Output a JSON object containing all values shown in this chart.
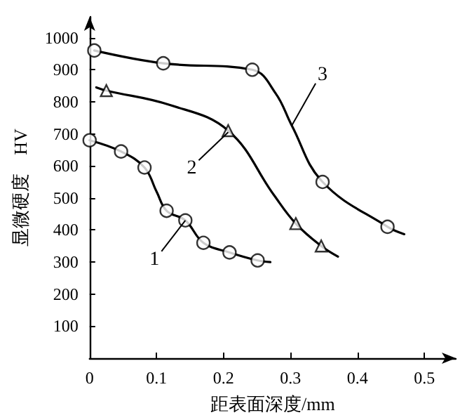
{
  "chart_data": {
    "type": "line",
    "xlabel": "距表面深度/mm",
    "ylabel": "显微硬度　HV",
    "xlim": [
      0,
      0.547
    ],
    "ylim": [
      0,
      1065
    ],
    "xticks": [
      0,
      0.1,
      0.2,
      0.3,
      0.4,
      0.5
    ],
    "yticks": [
      100,
      200,
      300,
      400,
      500,
      600,
      700,
      800,
      900,
      1000
    ],
    "grid": false,
    "series": [
      {
        "marker": "none",
        "color": "#000000",
        "x": [
          0,
          0.047,
          0.082,
          0.1,
          0.115,
          0.143,
          0.17,
          0.209,
          0.251,
          0.27
        ],
        "values": [
          680,
          645,
          595,
          520,
          460,
          430,
          360,
          330,
          305,
          300
        ]
      },
      {
        "type": "scatter",
        "marker": "circle",
        "color": "#000000",
        "x": [
          0,
          0.047,
          0.082,
          0.115,
          0.143,
          0.17,
          0.209,
          0.251
        ],
        "values": [
          680,
          645,
          595,
          460,
          430,
          360,
          330,
          305
        ]
      },
      {
        "marker": "none",
        "color": "#000000",
        "x": [
          0.01,
          0.025,
          0.12,
          0.207,
          0.275,
          0.308,
          0.346,
          0.371
        ],
        "values": [
          845,
          835,
          790,
          710,
          510,
          420,
          350,
          317
        ]
      },
      {
        "type": "scatter",
        "marker": "triangle",
        "color": "#000000",
        "x": [
          0.025,
          0.207,
          0.308,
          0.346
        ],
        "values": [
          835,
          710,
          420,
          350
        ]
      },
      {
        "marker": "none",
        "color": "#000000",
        "x": [
          0.007,
          0.11,
          0.243,
          0.278,
          0.302,
          0.348,
          0.445,
          0.47
        ],
        "values": [
          960,
          920,
          900,
          826,
          726,
          550,
          410,
          387
        ]
      },
      {
        "type": "scatter",
        "marker": "circle",
        "color": "#000000",
        "x": [
          0.007,
          0.11,
          0.243,
          0.348,
          0.445
        ],
        "values": [
          960,
          920,
          900,
          550,
          410
        ]
      }
    ],
    "annotations": [
      {
        "text": "1",
        "x": 0.143,
        "y": 430
      },
      {
        "text": "2",
        "x": 0.207,
        "y": 705
      },
      {
        "text": "3",
        "x": 0.302,
        "y": 726
      }
    ]
  }
}
